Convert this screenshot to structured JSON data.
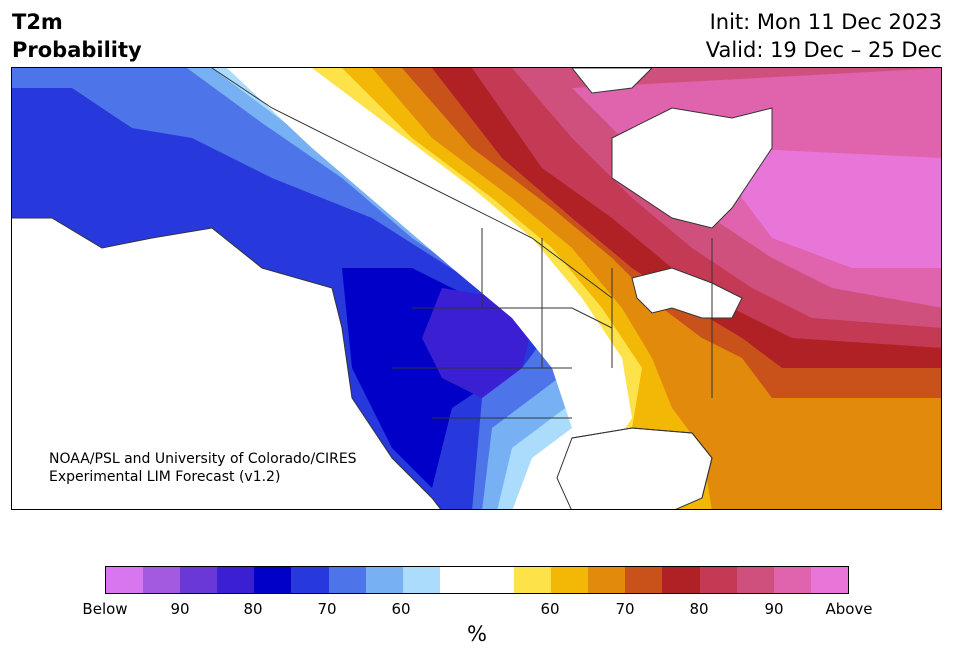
{
  "title": {
    "line1": "T2m",
    "line2": "Probability"
  },
  "run": {
    "init": "Init: Mon 11 Dec 2023",
    "valid": "Valid: 19 Dec – 25 Dec"
  },
  "credit": {
    "line1": "NOAA/PSL and University of Colorado/CIRES",
    "line2": "Experimental LIM Forecast (v1.2)"
  },
  "colorbar": {
    "unit": "%",
    "ticks": [
      "Below",
      "90",
      "80",
      "70",
      "60",
      "60",
      "70",
      "80",
      "90",
      "Above"
    ],
    "colors": [
      "#d776ee",
      "#a45ae0",
      "#6a38d6",
      "#3a1fd3",
      "#0000c8",
      "#2738dc",
      "#4d74e8",
      "#78b0f4",
      "#acdcfc",
      "#ffffff",
      "#ffffff",
      "#fee24a",
      "#f3b805",
      "#e18a0c",
      "#c9521a",
      "#b02126",
      "#c43a55",
      "#d0507d",
      "#df63ad",
      "#e876d8"
    ]
  },
  "map_colors": {
    "above_strong": "#e876d8",
    "above_90": "#df63ad",
    "above_85": "#d0507d",
    "above_80": "#c43a55",
    "above_75": "#b02126",
    "above_70": "#c9521a",
    "above_65": "#e18a0c",
    "above_60": "#f3b805",
    "above_55": "#fee24a",
    "below_55": "#acdcfc",
    "below_60": "#78b0f4",
    "below_65": "#4d74e8",
    "below_70": "#2738dc",
    "below_75": "#0000c8",
    "below_80": "#3a1fd3"
  }
}
